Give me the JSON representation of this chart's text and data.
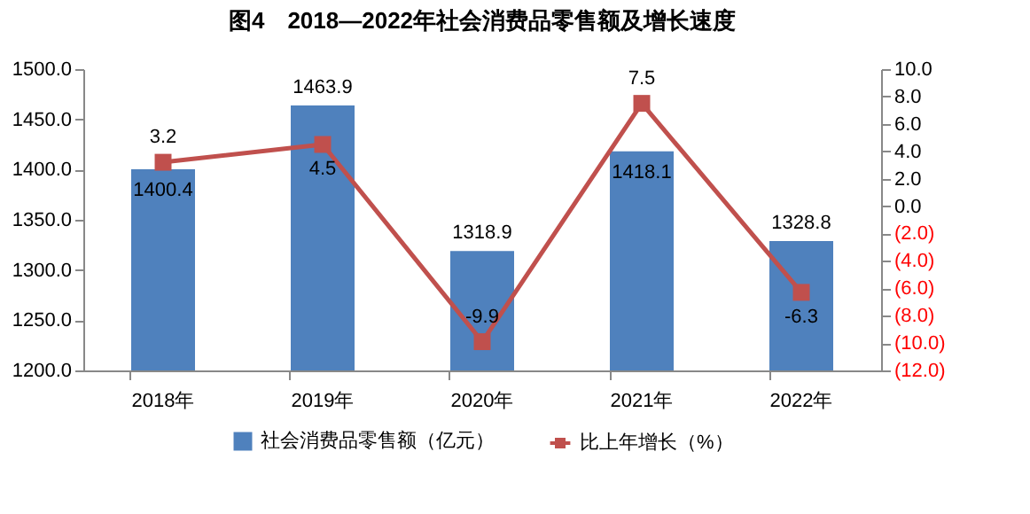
{
  "chart_data": {
    "type": "bar",
    "title": "图4　2018—2022年社会消费品零售额及增长速度",
    "categories": [
      "2018年",
      "2019年",
      "2020年",
      "2021年",
      "2022年"
    ],
    "series": [
      {
        "name": "社会消费品零售额（亿元）",
        "type": "bar",
        "color": "#4f81bd",
        "values": [
          1400.4,
          1463.9,
          1318.9,
          1418.1,
          1328.8
        ]
      },
      {
        "name": "比上年增长（%）",
        "type": "line",
        "axis": "y2",
        "color": "#c0504d",
        "values": [
          3.2,
          4.5,
          -9.9,
          7.5,
          -6.3
        ]
      }
    ],
    "ylim": [
      1200,
      1500
    ],
    "yticks": [
      {
        "value": 1200,
        "label": "1200.0"
      },
      {
        "value": 1250,
        "label": "1250.0"
      },
      {
        "value": 1300,
        "label": "1300.0"
      },
      {
        "value": 1350,
        "label": "1350.0"
      },
      {
        "value": 1400,
        "label": "1400.0"
      },
      {
        "value": 1450,
        "label": "1450.0"
      },
      {
        "value": 1500,
        "label": "1500.0"
      }
    ],
    "y2lim": [
      -12,
      10
    ],
    "y2ticks": [
      {
        "value": -12,
        "label": "(12.0)"
      },
      {
        "value": -10,
        "label": "(10.0)"
      },
      {
        "value": -8,
        "label": "(8.0)"
      },
      {
        "value": -6,
        "label": "(6.0)"
      },
      {
        "value": -4,
        "label": "(4.0)"
      },
      {
        "value": -2,
        "label": "(2.0)"
      },
      {
        "value": 0,
        "label": "0.0"
      },
      {
        "value": 2,
        "label": "2.0"
      },
      {
        "value": 4,
        "label": "4.0"
      },
      {
        "value": 6,
        "label": "6.0"
      },
      {
        "value": 8,
        "label": "8.0"
      },
      {
        "value": 10,
        "label": "10.0"
      }
    ],
    "data_labels": true,
    "legend": "bottom",
    "marker": "square",
    "line_style": "solid"
  }
}
